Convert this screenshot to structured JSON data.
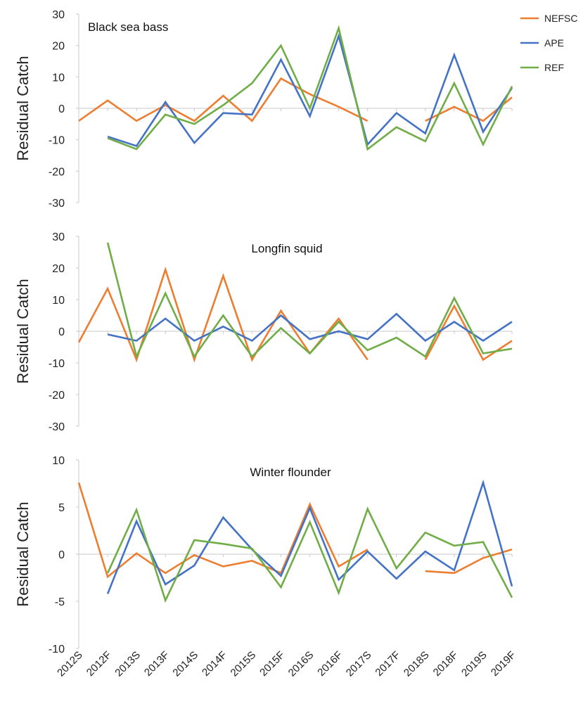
{
  "legend": {
    "placement": "top-right",
    "entries": [
      {
        "label": "NEFSC",
        "color": "#ED7D31"
      },
      {
        "label": "APE",
        "color": "#4472C4"
      },
      {
        "label": "REF",
        "color": "#70AD47"
      }
    ]
  },
  "chart_data": [
    {
      "type": "line",
      "title": "Black sea bass",
      "ylabel": "Residual Catch",
      "ylim": [
        -30,
        30
      ],
      "yticks": [
        -30,
        -20,
        -10,
        0,
        10,
        20,
        30
      ],
      "categories": [
        "2012S",
        "2012F",
        "2013S",
        "2013F",
        "2014S",
        "2014F",
        "2015S",
        "2015F",
        "2016S",
        "2016F",
        "2017S",
        "2017F",
        "2018S",
        "2018F",
        "2019S",
        "2019F"
      ],
      "series": [
        {
          "name": "NEFSC",
          "color": "#ED7D31",
          "values": [
            -4,
            2.5,
            -4,
            1,
            -4,
            4,
            -4,
            9.5,
            4.5,
            0.5,
            -4,
            null,
            -4,
            0.5,
            -4,
            3.5
          ]
        },
        {
          "name": "APE",
          "color": "#4472C4",
          "values": [
            null,
            -9,
            -12,
            2,
            -11,
            -1.5,
            -2,
            15.5,
            -2.5,
            23,
            -11.5,
            -1.5,
            -8,
            17,
            -7.5,
            6.5
          ]
        },
        {
          "name": "REF",
          "color": "#70AD47",
          "values": [
            null,
            -9.5,
            -13,
            -2,
            -5,
            1,
            8,
            20,
            0,
            25.5,
            -13,
            -6,
            -10.5,
            8,
            -11.5,
            7
          ]
        }
      ]
    },
    {
      "type": "line",
      "title": "Longfin squid",
      "ylabel": "Residual Catch",
      "ylim": [
        -30,
        30
      ],
      "yticks": [
        -30,
        -20,
        -10,
        0,
        10,
        20,
        30
      ],
      "categories": [
        "2012S",
        "2012F",
        "2013S",
        "2013F",
        "2014S",
        "2014F",
        "2015S",
        "2015F",
        "2016S",
        "2016F",
        "2017S",
        "2017F",
        "2018S",
        "2018F",
        "2019S",
        "2019F"
      ],
      "series": [
        {
          "name": "NEFSC",
          "color": "#ED7D31",
          "values": [
            -3.5,
            13.5,
            -9,
            19.5,
            -9,
            17.5,
            -9,
            6.5,
            -7,
            4,
            -9,
            null,
            -9,
            8,
            -9,
            -3
          ]
        },
        {
          "name": "APE",
          "color": "#4472C4",
          "values": [
            null,
            -1,
            -3,
            4,
            -3,
            1.5,
            -3,
            5,
            -2.5,
            0,
            -2.5,
            5.5,
            -3,
            3,
            -3,
            3
          ]
        },
        {
          "name": "REF",
          "color": "#70AD47",
          "values": [
            null,
            28,
            -8,
            12,
            -8,
            5,
            -8,
            1,
            -7,
            3,
            -6,
            -2,
            -8,
            10.5,
            -7,
            -5.5
          ]
        }
      ]
    },
    {
      "type": "line",
      "title": "Winter flounder",
      "ylabel": "Residual Catch",
      "ylim": [
        -10,
        10
      ],
      "yticks": [
        -10,
        -5,
        0,
        5,
        10
      ],
      "categories": [
        "2012S",
        "2012F",
        "2013S",
        "2013F",
        "2014S",
        "2014F",
        "2015S",
        "2015F",
        "2016S",
        "2016F",
        "2017S",
        "2017F",
        "2018S",
        "2018F",
        "2019S",
        "2019F"
      ],
      "series": [
        {
          "name": "NEFSC",
          "color": "#ED7D31",
          "values": [
            7.6,
            -2.4,
            0.1,
            -2.0,
            -0.1,
            -1.3,
            -0.7,
            -2.0,
            5.3,
            -1.3,
            0.5,
            null,
            -1.8,
            -2.0,
            -0.4,
            0.5
          ]
        },
        {
          "name": "APE",
          "color": "#4472C4",
          "values": [
            null,
            -4.2,
            3.5,
            -3.2,
            -1.2,
            3.9,
            0.5,
            -2.3,
            4.9,
            -2.7,
            0.3,
            -2.6,
            0.3,
            -1.7,
            7.6,
            -3.4
          ]
        },
        {
          "name": "REF",
          "color": "#70AD47",
          "values": [
            null,
            -2.0,
            4.7,
            -4.9,
            1.5,
            1.1,
            0.6,
            -3.5,
            3.4,
            -4.1,
            4.8,
            -1.5,
            2.3,
            0.9,
            1.3,
            -4.6
          ]
        }
      ]
    }
  ]
}
